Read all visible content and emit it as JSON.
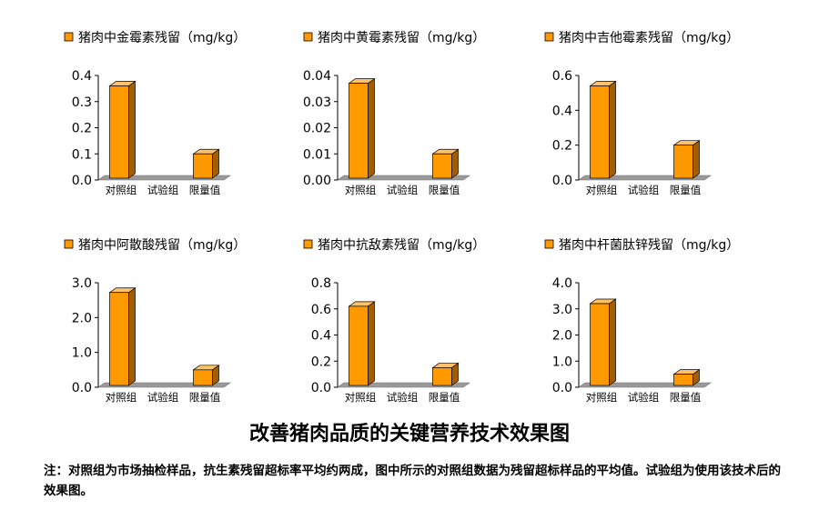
{
  "colors": {
    "bar_front": "#ff9900",
    "bar_side": "#a35c00",
    "bar_top": "#ffc266",
    "floor": "#9a9a9a",
    "floor_dark": "#707070",
    "legend_marker": "#ff9900"
  },
  "chart_data": [
    {
      "type": "bar",
      "title": "猪肉中金霉素残留（mg/kg）",
      "categories": [
        "对照组",
        "试验组",
        "限量值"
      ],
      "values": [
        0.36,
        0,
        0.1
      ],
      "ytick_labels": [
        "0.4",
        "0.3",
        "0.2",
        "0.1",
        "0.0"
      ],
      "ylim": [
        0,
        0.4
      ]
    },
    {
      "type": "bar",
      "title": "猪肉中黄霉素残留（mg/kg）",
      "categories": [
        "对照组",
        "试验组",
        "限量值"
      ],
      "values": [
        0.037,
        0,
        0.01
      ],
      "ytick_labels": [
        "0.04",
        "0.03",
        "0.02",
        "0.01",
        "0.00"
      ],
      "ylim": [
        0,
        0.04
      ]
    },
    {
      "type": "bar",
      "title": "猪肉中吉他霉素残留（mg/kg）",
      "categories": [
        "对照组",
        "试验组",
        "限量值"
      ],
      "values": [
        0.54,
        0,
        0.2
      ],
      "ytick_labels": [
        "0.6",
        "0.4",
        "0.2",
        "0.0"
      ],
      "ylim": [
        0,
        0.6
      ]
    },
    {
      "type": "bar",
      "title": "猪肉中阿散酸残留（mg/kg）",
      "categories": [
        "对照组",
        "试验组",
        "限量值"
      ],
      "values": [
        2.72,
        0,
        0.5
      ],
      "ytick_labels": [
        "3.0",
        "2.0",
        "1.0",
        "0.0"
      ],
      "ylim": [
        0,
        3
      ]
    },
    {
      "type": "bar",
      "title": "猪肉中抗敌素残留（mg/kg）",
      "categories": [
        "对照组",
        "试验组",
        "限量值"
      ],
      "values": [
        0.62,
        0,
        0.15
      ],
      "ytick_labels": [
        "0.8",
        "0.6",
        "0.4",
        "0.2",
        "0.0"
      ],
      "ylim": [
        0,
        0.8
      ]
    },
    {
      "type": "bar",
      "title": "猪肉中杆菌肽锌残留（mg/kg）",
      "categories": [
        "对照组",
        "试验组",
        "限量值"
      ],
      "values": [
        3.2,
        0,
        0.5
      ],
      "ytick_labels": [
        "4.0",
        "3.0",
        "2.0",
        "1.0",
        "0.0"
      ],
      "ylim": [
        0,
        4
      ]
    }
  ],
  "caption": {
    "title": "改善猪肉品质的关键营养技术效果图",
    "note": "注：对照组为市场抽检样品，抗生素残留超标率平均约两成，图中所示的对照组数据为残留超标样品的平均值。试验组为使用该技术后的效果图。"
  }
}
